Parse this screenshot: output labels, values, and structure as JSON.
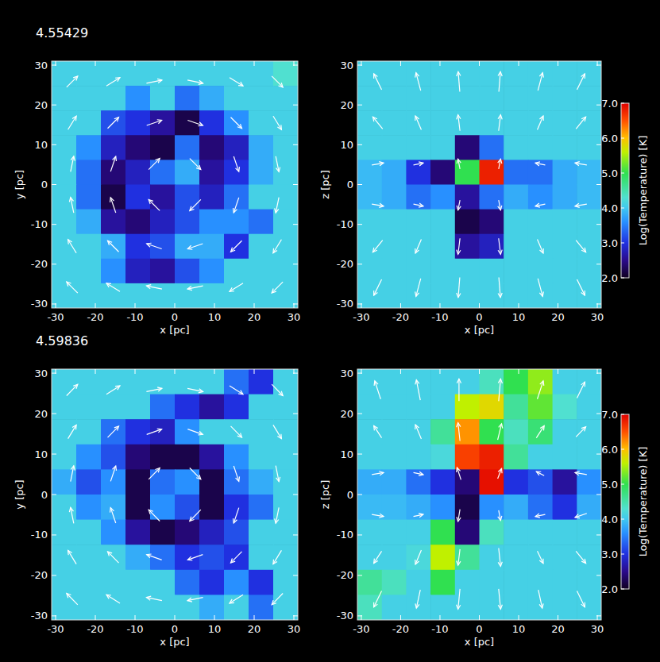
{
  "chart_data": [
    {
      "type": "heatmap",
      "title": "4.55429",
      "x_label": "x [pc]",
      "y_label": "y [pc]",
      "xlim": [
        -31,
        31
      ],
      "ylim": [
        -31,
        31
      ],
      "xticks": [
        -30,
        -20,
        -10,
        0,
        10,
        20,
        30
      ],
      "yticks": [
        -30,
        -20,
        -10,
        0,
        10,
        20,
        30
      ],
      "color_range": [
        2,
        7
      ],
      "cells": [
        [
          4.1,
          4.1,
          4.1,
          4.1,
          4.1,
          4.1,
          4.1,
          4.1,
          4.1,
          4.3
        ],
        [
          4.1,
          4.1,
          4.1,
          3.6,
          4.1,
          3.4,
          3.8,
          4.1,
          4.1,
          4.1
        ],
        [
          4.1,
          4.1,
          3.2,
          3.0,
          2.6,
          2.2,
          3.0,
          3.6,
          4.1,
          4.1
        ],
        [
          4.1,
          3.6,
          2.8,
          2.4,
          2.2,
          3.4,
          2.4,
          2.8,
          3.8,
          4.1
        ],
        [
          4.1,
          3.4,
          2.4,
          2.8,
          3.4,
          3.8,
          2.6,
          3.0,
          3.8,
          4.1
        ],
        [
          4.1,
          3.4,
          2.2,
          3.0,
          2.6,
          3.2,
          2.8,
          3.4,
          4.1,
          4.1
        ],
        [
          4.1,
          3.8,
          2.6,
          2.4,
          2.8,
          3.2,
          3.6,
          3.6,
          3.4,
          4.1
        ],
        [
          4.1,
          4.1,
          3.8,
          3.0,
          3.2,
          3.8,
          3.8,
          3.0,
          4.1,
          4.1
        ],
        [
          4.1,
          4.1,
          3.6,
          2.8,
          2.6,
          3.2,
          3.6,
          4.1,
          4.1,
          4.1
        ],
        [
          4.1,
          4.1,
          4.1,
          4.1,
          4.1,
          4.1,
          4.1,
          4.1,
          4.1,
          4.1
        ]
      ],
      "vectors": [
        [
          [
            2.8,
            2.8
          ],
          [
            3.4,
            2.1
          ],
          [
            3.9,
            0.8
          ],
          [
            3.9,
            -0.8
          ],
          [
            3.4,
            -2.1
          ],
          [
            2.8,
            -2.8
          ]
        ],
        [
          [
            2.1,
            3.4
          ],
          [
            2.8,
            2.8
          ],
          [
            3.8,
            1.3
          ],
          [
            3.8,
            -1.3
          ],
          [
            2.8,
            -2.8
          ],
          [
            2.1,
            -3.4
          ]
        ],
        [
          [
            0.8,
            3.9
          ],
          [
            1.3,
            3.8
          ],
          [
            2.8,
            2.8
          ],
          [
            2.8,
            -2.8
          ],
          [
            1.3,
            -3.8
          ],
          [
            0.8,
            -3.9
          ]
        ],
        [
          [
            -0.8,
            3.9
          ],
          [
            -1.3,
            3.8
          ],
          [
            -2.8,
            2.8
          ],
          [
            -2.8,
            -2.8
          ],
          [
            -1.3,
            -3.8
          ],
          [
            -0.8,
            -3.9
          ]
        ],
        [
          [
            -2.1,
            3.4
          ],
          [
            -2.8,
            2.8
          ],
          [
            -3.8,
            1.3
          ],
          [
            -3.8,
            -1.3
          ],
          [
            -2.8,
            -2.8
          ],
          [
            -2.1,
            -3.4
          ]
        ],
        [
          [
            -2.8,
            2.8
          ],
          [
            -3.4,
            2.1
          ],
          [
            -3.9,
            0.8
          ],
          [
            -3.9,
            -0.8
          ],
          [
            -3.4,
            -2.1
          ],
          [
            -2.8,
            -2.8
          ]
        ]
      ]
    },
    {
      "type": "heatmap",
      "x_label": "x [pc]",
      "y_label": "z [pc]",
      "xlim": [
        -31,
        31
      ],
      "ylim": [
        -31,
        31
      ],
      "xticks": [
        -30,
        -20,
        -10,
        0,
        10,
        20,
        30
      ],
      "yticks": [
        -30,
        -20,
        -10,
        0,
        10,
        20,
        30
      ],
      "colorbar": {
        "label": "Log(Temperature) [K]",
        "range": [
          2,
          7
        ],
        "ticks": [
          {
            "value": 2,
            "label": "2.0"
          },
          {
            "value": 3,
            "label": "3.0"
          },
          {
            "value": 4,
            "label": "4.0"
          },
          {
            "value": 5,
            "label": "5.0"
          },
          {
            "value": 6,
            "label": "6.0"
          },
          {
            "value": 7,
            "label": "7.0"
          }
        ]
      },
      "cells": [
        [
          4.1,
          4.1,
          4.1,
          4.1,
          4.1,
          4.1,
          4.1,
          4.1,
          4.1,
          4.1
        ],
        [
          4.1,
          4.1,
          4.1,
          4.1,
          4.1,
          4.1,
          4.1,
          4.1,
          4.1,
          4.1
        ],
        [
          4.1,
          4.1,
          4.1,
          4.1,
          4.1,
          4.1,
          4.1,
          4.1,
          4.1,
          4.1
        ],
        [
          4.1,
          4.1,
          4.1,
          4.1,
          2.4,
          3.4,
          4.1,
          4.1,
          4.1,
          4.1
        ],
        [
          3.9,
          3.8,
          3.0,
          2.4,
          5.0,
          6.8,
          3.4,
          3.4,
          3.8,
          3.9
        ],
        [
          3.9,
          3.8,
          3.4,
          3.6,
          2.6,
          3.4,
          3.8,
          3.6,
          3.8,
          3.9
        ],
        [
          4.1,
          4.1,
          4.1,
          4.1,
          2.2,
          2.4,
          4.1,
          4.1,
          4.1,
          4.1
        ],
        [
          4.1,
          4.1,
          4.1,
          4.1,
          2.6,
          2.8,
          4.1,
          4.1,
          4.1,
          4.1
        ],
        [
          4.1,
          4.1,
          4.1,
          4.1,
          4.1,
          4.1,
          4.1,
          4.1,
          4.1,
          4.1
        ],
        [
          4.1,
          4.1,
          4.1,
          4.1,
          4.1,
          4.1,
          4.1,
          4.1,
          4.1,
          4.1
        ]
      ],
      "vectors": [
        [
          [
            -2,
            4
          ],
          [
            -1.2,
            4.5
          ],
          [
            -0.4,
            5
          ],
          [
            0.4,
            5
          ],
          [
            1.2,
            4.5
          ],
          [
            2,
            4
          ]
        ],
        [
          [
            -2.5,
            3
          ],
          [
            -1.5,
            3.5
          ],
          [
            -0.5,
            4
          ],
          [
            0.5,
            4
          ],
          [
            1.5,
            3.5
          ],
          [
            2.5,
            3
          ]
        ],
        [
          [
            3,
            0.5
          ],
          [
            2.5,
            0.5
          ],
          [
            -0.5,
            2.5
          ],
          [
            0.5,
            2.5
          ],
          [
            -2.5,
            0.5
          ],
          [
            -3,
            0.5
          ]
        ],
        [
          [
            3,
            -0.5
          ],
          [
            2.5,
            -0.5
          ],
          [
            -0.5,
            -2.5
          ],
          [
            0.5,
            -2.5
          ],
          [
            -2.5,
            -0.5
          ],
          [
            -3,
            -0.5
          ]
        ],
        [
          [
            -2.5,
            -3
          ],
          [
            -1.5,
            -3.5
          ],
          [
            -0.5,
            -4
          ],
          [
            0.5,
            -4
          ],
          [
            1.5,
            -3.5
          ],
          [
            2.5,
            -3
          ]
        ],
        [
          [
            -2,
            -4
          ],
          [
            -1.2,
            -4.5
          ],
          [
            -0.4,
            -5
          ],
          [
            0.4,
            -5
          ],
          [
            1.2,
            -4.5
          ],
          [
            2,
            -4
          ]
        ]
      ]
    },
    {
      "type": "heatmap",
      "title": "4.59836",
      "x_label": "x [pc]",
      "y_label": "y [pc]",
      "xlim": [
        -31,
        31
      ],
      "ylim": [
        -31,
        31
      ],
      "xticks": [
        -30,
        -20,
        -10,
        0,
        10,
        20,
        30
      ],
      "yticks": [
        -30,
        -20,
        -10,
        0,
        10,
        20,
        30
      ],
      "color_range": [
        2,
        7
      ],
      "cells": [
        [
          4.1,
          4.1,
          4.1,
          4.1,
          4.1,
          4.1,
          4.1,
          3.4,
          3.0,
          4.1
        ],
        [
          4.1,
          4.1,
          4.1,
          4.1,
          3.4,
          3.0,
          2.6,
          3.0,
          4.1,
          4.1
        ],
        [
          4.1,
          4.1,
          3.4,
          3.0,
          2.8,
          3.6,
          4.1,
          4.1,
          4.1,
          4.1
        ],
        [
          4.1,
          3.6,
          3.2,
          2.4,
          2.2,
          2.2,
          2.6,
          3.6,
          4.1,
          4.1
        ],
        [
          3.8,
          3.2,
          3.6,
          2.2,
          3.4,
          3.6,
          2.2,
          3.4,
          3.8,
          4.1
        ],
        [
          4.1,
          3.6,
          3.8,
          2.2,
          3.6,
          3.2,
          2.2,
          3.0,
          3.4,
          4.1
        ],
        [
          4.1,
          4.1,
          3.6,
          2.6,
          2.2,
          2.4,
          2.8,
          3.2,
          4.1,
          4.1
        ],
        [
          4.1,
          4.1,
          4.1,
          3.8,
          3.4,
          3.0,
          3.2,
          3.0,
          4.1,
          4.1
        ],
        [
          4.1,
          4.1,
          4.1,
          4.1,
          4.1,
          3.4,
          3.0,
          3.6,
          3.0,
          4.1
        ],
        [
          4.1,
          4.1,
          4.1,
          4.1,
          4.1,
          4.1,
          3.8,
          4.1,
          3.4,
          4.1
        ]
      ],
      "vectors": [
        [
          [
            2.8,
            2.8
          ],
          [
            3.4,
            2.1
          ],
          [
            3.9,
            0.8
          ],
          [
            3.9,
            -0.8
          ],
          [
            3.4,
            -2.1
          ],
          [
            2.8,
            -2.8
          ]
        ],
        [
          [
            2.1,
            3.4
          ],
          [
            2.8,
            2.8
          ],
          [
            3.8,
            1.3
          ],
          [
            3.8,
            -1.3
          ],
          [
            2.8,
            -2.8
          ],
          [
            2.1,
            -3.4
          ]
        ],
        [
          [
            0.8,
            3.9
          ],
          [
            1.3,
            3.8
          ],
          [
            2.8,
            2.8
          ],
          [
            2.8,
            -2.8
          ],
          [
            1.3,
            -3.8
          ],
          [
            0.8,
            -3.9
          ]
        ],
        [
          [
            -0.8,
            3.9
          ],
          [
            -1.3,
            3.8
          ],
          [
            -2.8,
            2.8
          ],
          [
            -2.8,
            -2.8
          ],
          [
            -1.3,
            -3.8
          ],
          [
            -0.8,
            -3.9
          ]
        ],
        [
          [
            -2.1,
            3.4
          ],
          [
            -2.8,
            2.8
          ],
          [
            -3.8,
            1.3
          ],
          [
            -3.8,
            -1.3
          ],
          [
            -2.8,
            -2.8
          ],
          [
            -2.1,
            -3.4
          ]
        ],
        [
          [
            -2.8,
            2.8
          ],
          [
            -3.4,
            2.1
          ],
          [
            -3.9,
            0.8
          ],
          [
            -3.9,
            -0.8
          ],
          [
            -3.4,
            -2.1
          ],
          [
            -2.8,
            -2.8
          ]
        ]
      ]
    },
    {
      "type": "heatmap",
      "x_label": "x [pc]",
      "y_label": "z [pc]",
      "xlim": [
        -31,
        31
      ],
      "ylim": [
        -31,
        31
      ],
      "xticks": [
        -30,
        -20,
        -10,
        0,
        10,
        20,
        30
      ],
      "yticks": [
        -30,
        -20,
        -10,
        0,
        10,
        20,
        30
      ],
      "colorbar": {
        "label": "Log(Temperature) [K]",
        "range": [
          2,
          7
        ],
        "ticks": [
          {
            "value": 2,
            "label": "2.0"
          },
          {
            "value": 3,
            "label": "3.0"
          },
          {
            "value": 4,
            "label": "4.0"
          },
          {
            "value": 5,
            "label": "5.0"
          },
          {
            "value": 6,
            "label": "6.0"
          },
          {
            "value": 7,
            "label": "7.0"
          }
        ]
      },
      "cells": [
        [
          4.1,
          4.1,
          4.1,
          4.1,
          4.1,
          4.4,
          5.0,
          5.4,
          4.1,
          4.1
        ],
        [
          4.1,
          4.1,
          4.1,
          4.1,
          5.6,
          5.8,
          4.6,
          5.2,
          4.3,
          4.1
        ],
        [
          4.1,
          4.1,
          4.1,
          4.6,
          6.2,
          5.0,
          4.4,
          4.8,
          4.1,
          4.1
        ],
        [
          4.1,
          4.1,
          4.1,
          4.2,
          6.6,
          6.8,
          4.6,
          4.1,
          4.1,
          4.1
        ],
        [
          3.8,
          3.8,
          3.4,
          3.0,
          2.4,
          6.9,
          3.0,
          3.2,
          2.6,
          3.6
        ],
        [
          3.9,
          3.9,
          3.8,
          3.6,
          2.2,
          3.6,
          3.8,
          3.4,
          3.0,
          3.8
        ],
        [
          4.1,
          4.1,
          4.1,
          5.0,
          2.4,
          4.4,
          4.1,
          4.1,
          4.1,
          4.1
        ],
        [
          4.1,
          4.1,
          4.2,
          5.6,
          4.6,
          4.1,
          4.1,
          4.1,
          4.1,
          4.1
        ],
        [
          4.6,
          4.4,
          4.1,
          5.0,
          4.1,
          4.1,
          4.1,
          4.1,
          4.1,
          4.1
        ],
        [
          4.4,
          4.1,
          4.1,
          4.1,
          4.1,
          4.1,
          4.1,
          4.1,
          4.1,
          4.1
        ]
      ],
      "vectors": [
        [
          [
            -1.5,
            4.5
          ],
          [
            -1,
            5
          ],
          [
            0,
            5.5
          ],
          [
            0.5,
            5.5
          ],
          [
            1.5,
            4.5
          ],
          [
            2,
            4
          ]
        ],
        [
          [
            -2,
            3
          ],
          [
            -1.5,
            3.5
          ],
          [
            -0.5,
            4.5
          ],
          [
            1,
            4
          ],
          [
            2,
            3
          ],
          [
            2.5,
            2.5
          ]
        ],
        [
          [
            3,
            0.5
          ],
          [
            2.5,
            -0.5
          ],
          [
            -1,
            3
          ],
          [
            1,
            2.5
          ],
          [
            -2,
            1
          ],
          [
            -3,
            0.5
          ]
        ],
        [
          [
            3,
            -0.5
          ],
          [
            2.5,
            0.5
          ],
          [
            -0.5,
            -3
          ],
          [
            0.5,
            -2.5
          ],
          [
            -2.5,
            -0.5
          ],
          [
            -3,
            -1
          ]
        ],
        [
          [
            -2,
            -3
          ],
          [
            -1.5,
            -3.5
          ],
          [
            -0.5,
            -4
          ],
          [
            0.5,
            -4.5
          ],
          [
            1.5,
            -3
          ],
          [
            2.5,
            -3
          ]
        ],
        [
          [
            -2,
            -4
          ],
          [
            -1,
            -4.5
          ],
          [
            -0.5,
            -5
          ],
          [
            0.5,
            -5
          ],
          [
            1,
            -4.5
          ],
          [
            2,
            -4
          ]
        ]
      ]
    }
  ]
}
